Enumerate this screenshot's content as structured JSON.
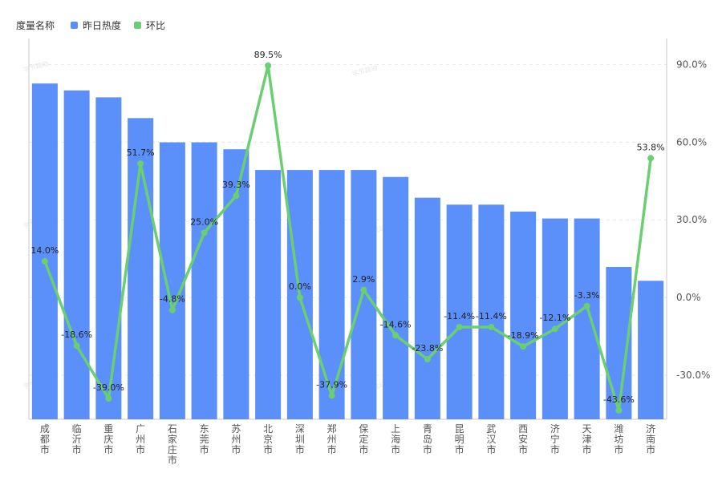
{
  "legend": {
    "title": "度量名称",
    "heat_label": "昨日热度",
    "ratio_label": "环比"
  },
  "colors": {
    "bar": "#5b8ff9",
    "line": "#6bcf72",
    "axis": "#c8c8c8",
    "grid": "#e8e8e8"
  },
  "watermark": "字节跳动",
  "chart_data": {
    "type": "bar+line",
    "categories": [
      "成都市",
      "临沂市",
      "重庆市",
      "广州市",
      "石家庄市",
      "东莞市",
      "苏州市",
      "北京市",
      "深圳市",
      "郑州市",
      "保定市",
      "上海市",
      "青岛市",
      "昆明市",
      "武汉市",
      "西安市",
      "济宁市",
      "天津市",
      "潍坊市",
      "济南市"
    ],
    "series": [
      {
        "name": "昨日热度",
        "type": "bar",
        "axis": "left",
        "values": [
          97,
          95,
          93,
          87,
          80,
          80,
          78,
          72,
          72,
          72,
          72,
          70,
          64,
          62,
          62,
          60,
          58,
          58,
          44,
          40
        ]
      },
      {
        "name": "环比",
        "type": "line",
        "axis": "right",
        "values": [
          14.0,
          -18.6,
          -39.0,
          51.7,
          -4.8,
          25.0,
          39.3,
          89.5,
          0.0,
          -37.9,
          2.9,
          -14.6,
          -23.8,
          -11.4,
          -11.4,
          -18.9,
          -12.1,
          -3.3,
          -43.6,
          53.8
        ],
        "labels": [
          "14.0%",
          "-18.6%",
          "-39.0%",
          "51.7%",
          "-4.8%",
          "25.0%",
          "39.3%",
          "89.5%",
          "0.0%",
          "-37.9%",
          "2.9%",
          "-14.6%",
          "-23.8%",
          "-11.4%",
          "-11.4%",
          "-18.9%",
          "-12.1%",
          "-3.3%",
          "-43.6%",
          "53.8%"
        ]
      }
    ],
    "left_axis": {
      "ylim": [
        0,
        110
      ],
      "show_labels": false
    },
    "right_axis": {
      "ylim": [
        -47,
        100
      ],
      "ticks": [
        90,
        60,
        30,
        0,
        -30
      ],
      "tick_labels": [
        "90.0%",
        "60.0%",
        "30.0%",
        "0.0%",
        "-30.0%"
      ]
    },
    "grid": true,
    "legend_position": "top-left"
  }
}
